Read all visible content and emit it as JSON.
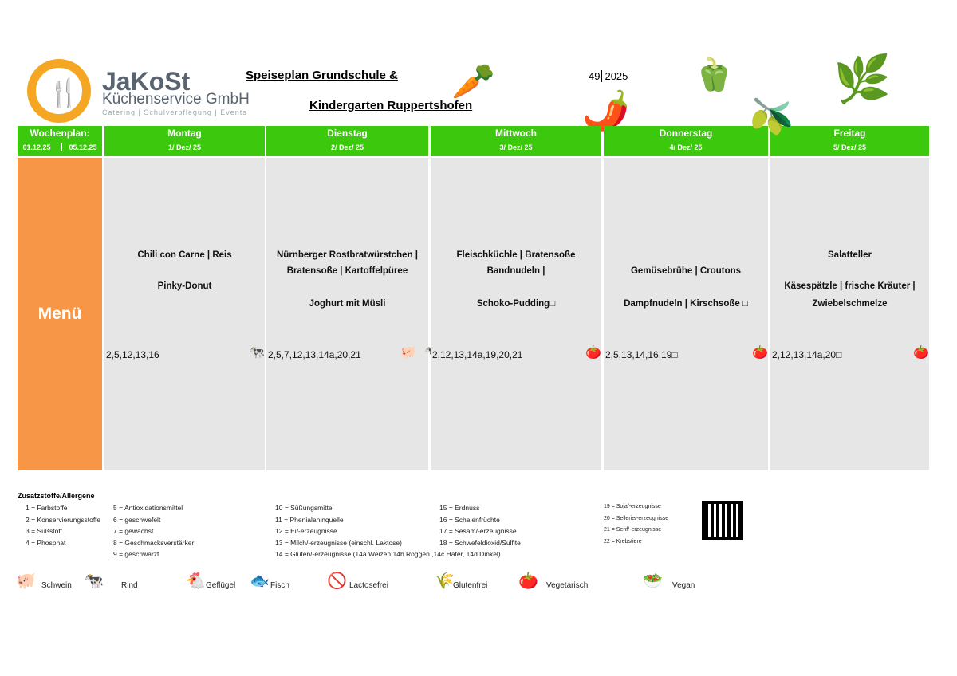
{
  "header": {
    "brand": "JaKoSt",
    "company": "Küchenservice GmbH",
    "tagline": "Catering | Schulverpflegung | Events",
    "title_line1": "Speiseplan Grundschule & ",
    "title_line2": "Kindergarten Ruppertshofen",
    "week": "49",
    "year": "2025"
  },
  "weekplan": {
    "label": "Wochenplan:",
    "from": "01.12.25",
    "to": "05.12.25",
    "menu_label": "Menü"
  },
  "days": [
    {
      "name": "Montag",
      "date": "1/ Dez/ 25",
      "lines": [
        "Chili con Carne | Reis",
        "",
        "Pinky-Donut",
        ""
      ],
      "codes": "2,5,12,13,16",
      "icons": [
        "cow-icon"
      ]
    },
    {
      "name": "Dienstag",
      "date": "2/ Dez/ 25",
      "lines": [
        "Nürnberger Rostbratwürstchen |",
        "Bratensoße |  Kartoffelpüree",
        "",
        "Joghurt mit Müsli"
      ],
      "codes": "2,5,7,12,13,14a,20,21",
      "icons": [
        "pig-icon",
        "cow-icon"
      ]
    },
    {
      "name": "Mittwoch",
      "date": "3/ Dez/ 25",
      "lines": [
        "Fleischküchle  | Bratensoße",
        "Bandnudeln |",
        "",
        "Schoko-Pudding□"
      ],
      "codes": "2,12,13,14a,19,20,21",
      "icons": [
        "vegetarian-icon"
      ]
    },
    {
      "name": "Donnerstag",
      "date": "4/ Dez/ 25",
      "lines": [
        "",
        "Gemüsebrühe | Croutons",
        "",
        "Dampfnudeln |  Kirschsoße □"
      ],
      "codes": "2,5,13,14,16,19□",
      "icons": [
        "vegetarian-icon"
      ]
    },
    {
      "name": "Freitag",
      "date": "5/ Dez/ 25",
      "lines": [
        "Salatteller",
        "",
        "Käsespätzle | frische Kräuter |",
        "Zwiebelschmelze"
      ],
      "codes": "2,12,13,14a,20□",
      "icons": [
        "vegetarian-icon"
      ]
    }
  ],
  "legend": {
    "title": "Zusatzstoffe/Allergene",
    "columns": [
      [
        "1 = Farbstoffe",
        "2 = Konservierungsstoffe",
        "3 = Süßstoff",
        "4 = Phosphat"
      ],
      [
        "5 = Antioxidationsmittel",
        "6 = geschwefelt",
        "7 = gewachst",
        "8 = Geschmacksverstärker",
        "9 = geschwärzt"
      ],
      [
        "10 = Süßungsmittel",
        "11 = Phenialaninquelle",
        "12 = Ei/-erzeugnisse",
        "13 = Milch/-erzeugnisse (einschl. Laktose)",
        "14 = Gluten/-erzeugnisse (14a Weizen,14b Roggen ,14c Hafer, 14d Dinkel)"
      ],
      [
        "15 = Erdnuss",
        "16 = Schalenfrüchte",
        "17 = Sesam/-erzeugnisse",
        "18 = Schwefeldioxid/Sulfite"
      ],
      [
        "19 = Soja/-erzeugnisse",
        "20 = Sellerie/-erzeugnisse",
        "21 = Senf/-erzeugnisse",
        "22 = Krebstiere"
      ]
    ],
    "symbols": [
      {
        "label": "Schwein",
        "icon": "pig-icon"
      },
      {
        "label": "Rind",
        "icon": "cow-icon"
      },
      {
        "label": "Geflügel",
        "icon": "chicken-icon"
      },
      {
        "label": "Fisch",
        "icon": "fish-icon"
      },
      {
        "label": "Lactosefrei",
        "icon": "lactose-free-icon"
      },
      {
        "label": "Glutenfrei",
        "icon": "gluten-free-icon"
      },
      {
        "label": "Vegetarisch",
        "icon": "vegetarian-icon"
      },
      {
        "label": "Vegan",
        "icon": "vegan-icon"
      }
    ]
  },
  "colors": {
    "green": "#3cc80d",
    "orange": "#f79646",
    "cell": "#e6e6e6"
  }
}
